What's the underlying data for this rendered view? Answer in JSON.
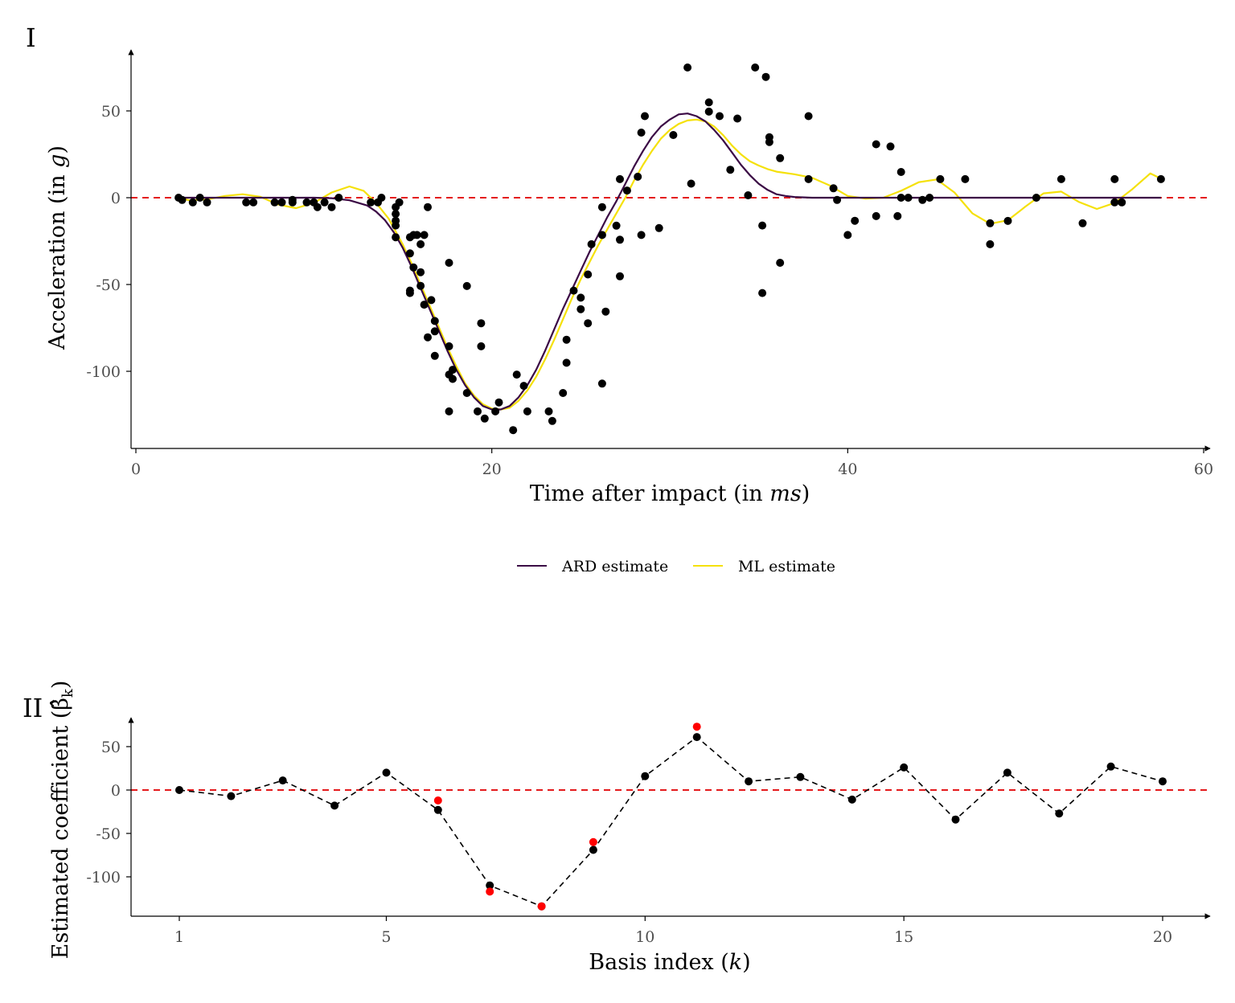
{
  "panels": {
    "top_label": "I",
    "bottom_label": "II"
  },
  "legend": {
    "items": [
      {
        "label": "ARD estimate",
        "color": "#3b0a45"
      },
      {
        "label": "ML estimate",
        "color": "#f5e10a"
      }
    ]
  },
  "colors": {
    "points": "#000000",
    "zero_line": "#e41a1c",
    "highlight_points": "#ff0000",
    "axis": "#000000",
    "tick_text": "#4d4d4d"
  },
  "chart_data": [
    {
      "type": "scatter",
      "xlabel": "Time after impact (in ms)",
      "ylabel": "Acceleration (in g)",
      "xlim": [
        0,
        60
      ],
      "ylim": [
        -145,
        85
      ],
      "xticks": [
        0,
        20,
        40,
        60
      ],
      "yticks": [
        50,
        0,
        -50,
        -100
      ],
      "reference_line_y": 0,
      "points": [
        [
          2.4,
          0
        ],
        [
          2.6,
          -1.3
        ],
        [
          3.2,
          -2.7
        ],
        [
          3.6,
          0
        ],
        [
          4.0,
          -2.7
        ],
        [
          6.2,
          -2.7
        ],
        [
          6.6,
          -2.7
        ],
        [
          7.8,
          -2.7
        ],
        [
          8.2,
          -2.7
        ],
        [
          8.8,
          -1.3
        ],
        [
          8.8,
          -2.7
        ],
        [
          9.6,
          -2.7
        ],
        [
          10.0,
          -2.7
        ],
        [
          10.2,
          -5.4
        ],
        [
          10.6,
          -2.7
        ],
        [
          11.0,
          -5.4
        ],
        [
          11.4,
          0
        ],
        [
          13.2,
          -2.7
        ],
        [
          13.6,
          -2.7
        ],
        [
          13.8,
          0
        ],
        [
          14.6,
          -5.4
        ],
        [
          14.6,
          -9.3
        ],
        [
          14.6,
          -13.3
        ],
        [
          14.6,
          -16.0
        ],
        [
          14.6,
          -22.8
        ],
        [
          14.8,
          -2.7
        ],
        [
          15.4,
          -22.8
        ],
        [
          15.4,
          -32.1
        ],
        [
          15.4,
          -53.5
        ],
        [
          15.4,
          -54.9
        ],
        [
          15.6,
          -21.5
        ],
        [
          15.6,
          -40.2
        ],
        [
          15.8,
          -21.5
        ],
        [
          16.0,
          -26.8
        ],
        [
          16.0,
          -42.9
        ],
        [
          16.0,
          -50.8
        ],
        [
          16.2,
          -21.5
        ],
        [
          16.2,
          -61.6
        ],
        [
          16.4,
          -5.4
        ],
        [
          16.4,
          -80.4
        ],
        [
          16.6,
          -59.0
        ],
        [
          16.8,
          -71.0
        ],
        [
          16.8,
          -77.0
        ],
        [
          16.8,
          -91.1
        ],
        [
          17.6,
          -37.5
        ],
        [
          17.6,
          -85.6
        ],
        [
          17.6,
          -101.9
        ],
        [
          17.6,
          -123.1
        ],
        [
          17.8,
          -99.1
        ],
        [
          17.8,
          -104.4
        ],
        [
          18.6,
          -112.5
        ],
        [
          18.6,
          -50.9
        ],
        [
          19.2,
          -123.1
        ],
        [
          19.4,
          -72.3
        ],
        [
          19.4,
          -85.6
        ],
        [
          19.6,
          -127.2
        ],
        [
          20.2,
          -123.1
        ],
        [
          20.4,
          -117.9
        ],
        [
          21.2,
          -133.9
        ],
        [
          21.4,
          -101.9
        ],
        [
          21.8,
          -108.4
        ],
        [
          22.0,
          -123.1
        ],
        [
          23.2,
          -123.1
        ],
        [
          23.4,
          -128.6
        ],
        [
          24.0,
          -112.5
        ],
        [
          24.2,
          -95.1
        ],
        [
          24.2,
          -81.8
        ],
        [
          24.6,
          -53.5
        ],
        [
          25.0,
          -64.2
        ],
        [
          25.0,
          -57.6
        ],
        [
          25.4,
          -72.3
        ],
        [
          25.4,
          -44.2
        ],
        [
          25.6,
          -26.8
        ],
        [
          26.2,
          -5.4
        ],
        [
          26.2,
          -21.5
        ],
        [
          26.2,
          -107.1
        ],
        [
          26.4,
          -65.6
        ],
        [
          27.0,
          -16.1
        ],
        [
          27.2,
          -45.3
        ],
        [
          27.2,
          -24.2
        ],
        [
          27.2,
          10.7
        ],
        [
          27.6,
          4.1
        ],
        [
          28.2,
          12.1
        ],
        [
          28.4,
          -21.5
        ],
        [
          28.4,
          37.5
        ],
        [
          28.6,
          47.0
        ],
        [
          29.4,
          -17.5
        ],
        [
          30.2,
          36.1
        ],
        [
          31.0,
          75.0
        ],
        [
          31.2,
          8.1
        ],
        [
          32.2,
          49.6
        ],
        [
          32.2,
          54.9
        ],
        [
          32.8,
          47.0
        ],
        [
          33.4,
          16.1
        ],
        [
          33.8,
          45.6
        ],
        [
          34.4,
          1.4
        ],
        [
          34.8,
          75.0
        ],
        [
          35.2,
          -16.0
        ],
        [
          35.2,
          -54.9
        ],
        [
          35.4,
          69.6
        ],
        [
          35.6,
          32.1
        ],
        [
          35.6,
          34.8
        ],
        [
          36.2,
          22.8
        ],
        [
          36.2,
          -37.5
        ],
        [
          37.8,
          10.7
        ],
        [
          37.8,
          47.0
        ],
        [
          39.2,
          5.4
        ],
        [
          39.4,
          -1.3
        ],
        [
          40.0,
          -21.5
        ],
        [
          40.4,
          -13.3
        ],
        [
          41.6,
          -10.6
        ],
        [
          41.6,
          30.8
        ],
        [
          42.4,
          29.5
        ],
        [
          42.8,
          -10.6
        ],
        [
          43.0,
          0
        ],
        [
          43.0,
          14.8
        ],
        [
          43.4,
          0
        ],
        [
          44.2,
          -1.3
        ],
        [
          44.6,
          0
        ],
        [
          45.2,
          10.7
        ],
        [
          46.6,
          10.7
        ],
        [
          48.0,
          -14.7
        ],
        [
          48.0,
          -26.8
        ],
        [
          49.0,
          -13.4
        ],
        [
          50.6,
          0
        ],
        [
          52.0,
          10.7
        ],
        [
          53.2,
          -14.7
        ],
        [
          55.0,
          -2.7
        ],
        [
          55.0,
          10.7
        ],
        [
          55.4,
          -2.7
        ],
        [
          57.6,
          10.7
        ]
      ],
      "series": [
        {
          "name": "ARD estimate",
          "x": [
            2.4,
            4,
            6,
            8,
            10,
            11,
            12,
            13,
            13.5,
            14,
            14.5,
            15,
            15.5,
            16,
            16.5,
            17,
            17.5,
            18,
            18.5,
            19,
            19.5,
            20,
            20.5,
            21,
            21.5,
            22,
            22.5,
            23,
            23.5,
            24,
            24.5,
            25,
            25.5,
            26,
            26.5,
            27,
            27.5,
            28,
            28.5,
            29,
            29.5,
            30,
            30.5,
            31,
            31.5,
            32,
            32.5,
            33,
            33.5,
            34,
            34.5,
            35,
            35.5,
            36,
            36.5,
            37,
            38,
            40,
            45,
            50,
            55,
            57.6
          ],
          "y": [
            0,
            0,
            0,
            0,
            0,
            -0.3,
            -1.5,
            -4.5,
            -8,
            -13,
            -20,
            -29,
            -40,
            -52,
            -64,
            -76,
            -88,
            -99,
            -108,
            -115,
            -120,
            -122,
            -122,
            -120,
            -115,
            -108,
            -99,
            -88,
            -76,
            -64,
            -53,
            -42,
            -31,
            -21,
            -11,
            -2,
            8,
            18,
            27,
            35,
            41,
            45,
            48,
            48.5,
            47,
            44,
            39,
            33,
            26,
            19,
            13,
            8,
            4.5,
            2,
            1,
            0.4,
            0,
            0,
            0,
            0,
            0,
            0
          ]
        },
        {
          "name": "ML estimate",
          "x": [
            2.4,
            3,
            4,
            5,
            6,
            7,
            8,
            9,
            10,
            11,
            12,
            12.8,
            13.5,
            14.2,
            15,
            15.5,
            16,
            16.5,
            17,
            17.5,
            18,
            18.5,
            19,
            19.5,
            20,
            20.5,
            21,
            21.5,
            22,
            22.5,
            23,
            23.5,
            24,
            24.5,
            25,
            25.5,
            26,
            26.5,
            27,
            27.5,
            28,
            28.5,
            29,
            29.5,
            30,
            30.5,
            31,
            31.5,
            32,
            32.5,
            33,
            33.5,
            34,
            34.5,
            35,
            35.5,
            36,
            37,
            38,
            39,
            40,
            41,
            42,
            43,
            44,
            45,
            46,
            47,
            48,
            49,
            50,
            51,
            52,
            53,
            54,
            55,
            56,
            57,
            57.6
          ],
          "y": [
            0,
            -1.5,
            -1,
            1,
            2,
            0.5,
            -4,
            -6,
            -3,
            3,
            6.5,
            4,
            -3,
            -12,
            -27,
            -38,
            -50,
            -62,
            -74,
            -86,
            -97,
            -107,
            -114,
            -119,
            -121.5,
            -122,
            -121,
            -117,
            -111,
            -103,
            -93,
            -82,
            -70,
            -58,
            -47,
            -37,
            -27,
            -18,
            -9,
            0,
            10,
            19,
            27,
            34,
            39,
            42.5,
            44.5,
            45,
            44,
            41,
            36,
            30,
            25,
            21,
            18.5,
            16.5,
            15,
            13.5,
            11.5,
            7,
            1,
            -0.5,
            0,
            4,
            9,
            10.5,
            3,
            -9,
            -15,
            -13,
            -5,
            2.5,
            3.5,
            -2.5,
            -6.5,
            -3,
            5,
            14,
            11
          ]
        }
      ]
    },
    {
      "type": "line",
      "xlabel": "Basis index (k)",
      "ylabel": "Estimated coefficient (β̂k)",
      "xlim": [
        0.1,
        20.9
      ],
      "ylim": [
        -145,
        80
      ],
      "xticks": [
        1,
        5,
        10,
        15,
        20
      ],
      "yticks": [
        50,
        0,
        -50,
        -100
      ],
      "reference_line_y": 0,
      "series": [
        {
          "name": "",
          "x": [
            1,
            2,
            3,
            4,
            5,
            6,
            7,
            8,
            9,
            10,
            11,
            12,
            13,
            14,
            15,
            16,
            17,
            18,
            19,
            20
          ],
          "y": [
            0,
            -7,
            11,
            -18,
            20,
            -23,
            -110,
            -134,
            -69,
            16,
            61,
            10,
            15,
            -11,
            26,
            -34,
            20,
            -27,
            27,
            10
          ],
          "style": "dashed-black"
        },
        {
          "name": "",
          "x": [
            6,
            7,
            8,
            9,
            11
          ],
          "y": [
            -12,
            -117,
            -134,
            -60,
            73
          ],
          "style": "red-points"
        }
      ]
    }
  ]
}
